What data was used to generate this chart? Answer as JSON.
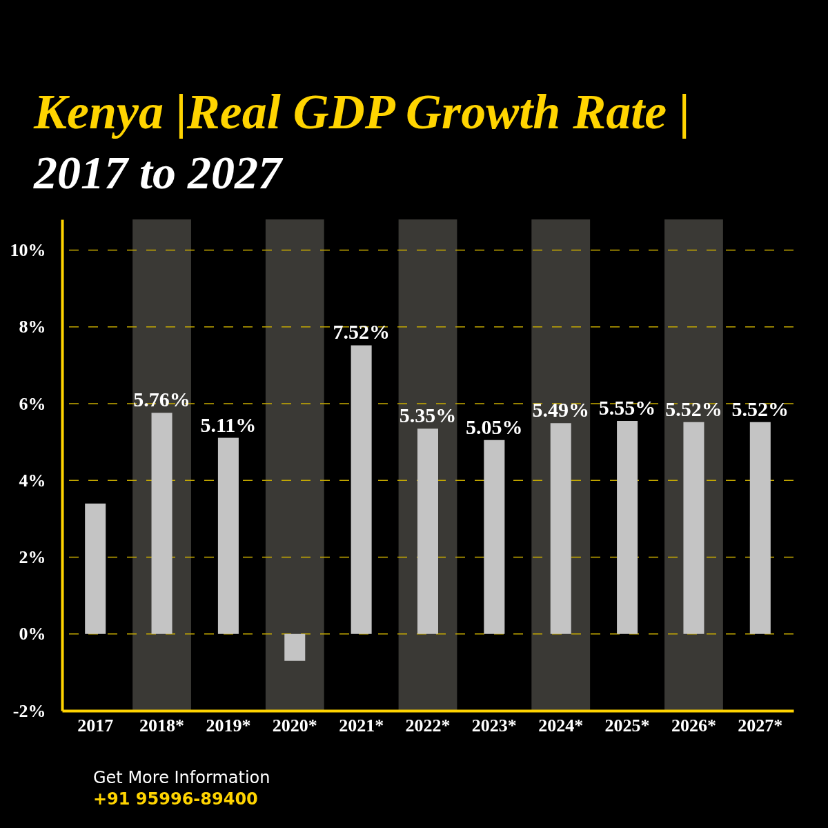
{
  "chart_data": {
    "type": "bar",
    "title": "Kenya |Real GDP Growth Rate |",
    "subtitle": "2017 to 2027",
    "categories": [
      "2017",
      "2018*",
      "2019*",
      "2020*",
      "2021*",
      "2022*",
      "2023*",
      "2024*",
      "2025*",
      "2026*",
      "2027*"
    ],
    "values": [
      3.4,
      5.76,
      5.11,
      -0.7,
      7.52,
      5.35,
      5.05,
      5.49,
      5.55,
      5.52,
      5.52
    ],
    "value_labels": [
      null,
      "5.76%",
      "5.11%",
      null,
      "7.52%",
      "5.35%",
      "5.05%",
      "5.49%",
      "5.55%",
      "5.52%",
      "5.52%"
    ],
    "color": "#c4c4c4",
    "ylim": [
      -2,
      10.8
    ],
    "yticks": [
      {
        "value": -2,
        "label": "-2%"
      },
      {
        "value": 0,
        "label": "0%"
      },
      {
        "value": 2,
        "label": "2%"
      },
      {
        "value": 4,
        "label": "4%"
      },
      {
        "value": 6,
        "label": "6%"
      },
      {
        "value": 8,
        "label": "8%"
      },
      {
        "value": 10,
        "label": "10%"
      }
    ],
    "grid": "y",
    "bands": [
      {
        "axis": "x",
        "from": "2018*",
        "to": "2018*",
        "color": "#3a3935"
      },
      {
        "axis": "x",
        "from": "2020*",
        "to": "2020*",
        "color": "#3a3935"
      },
      {
        "axis": "x",
        "from": "2022*",
        "to": "2022*",
        "color": "#3a3935"
      },
      {
        "axis": "x",
        "from": "2024*",
        "to": "2024*",
        "color": "#3a3935"
      },
      {
        "axis": "x",
        "from": "2026*",
        "to": "2026*",
        "color": "#3a3935"
      }
    ],
    "annotations": [
      "Get More Information",
      "+91 95996-89400"
    ]
  }
}
